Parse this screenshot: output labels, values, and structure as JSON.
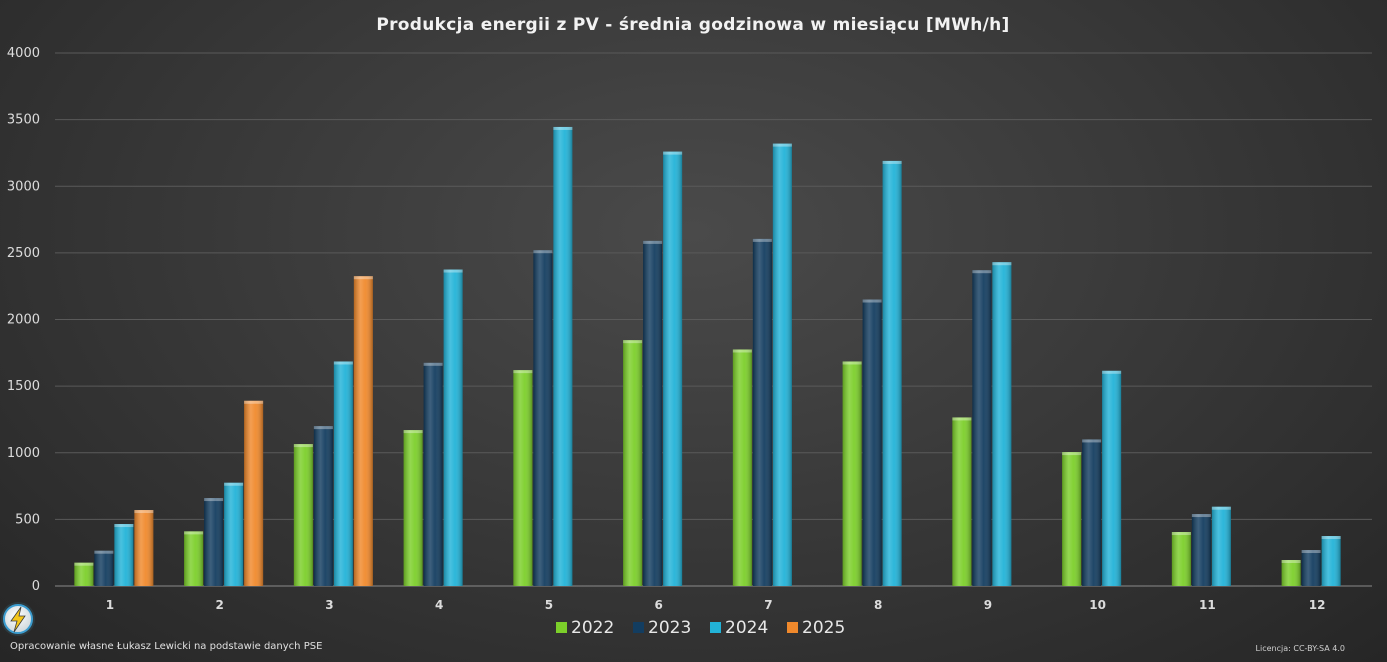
{
  "chart_data": {
    "type": "bar",
    "title": "Produkcja energii z PV - średnia godzinowa w miesiącu [MWh/h]",
    "categories": [
      "1",
      "2",
      "3",
      "4",
      "5",
      "6",
      "7",
      "8",
      "9",
      "10",
      "11",
      "12"
    ],
    "series": [
      {
        "name": "2022",
        "color": "#7ccf2a",
        "values": [
          175,
          410,
          1065,
          1170,
          1620,
          1845,
          1775,
          1685,
          1265,
          1005,
          405,
          195
        ]
      },
      {
        "name": "2023",
        "color": "#133d60",
        "values": [
          265,
          660,
          1200,
          1675,
          2520,
          2590,
          2605,
          2150,
          2370,
          1100,
          540,
          270
        ]
      },
      {
        "name": "2024",
        "color": "#22b3d8",
        "values": [
          465,
          775,
          1685,
          2375,
          3445,
          3260,
          3320,
          3190,
          2430,
          1615,
          595,
          375
        ]
      },
      {
        "name": "2025",
        "color": "#f0892c",
        "values": [
          570,
          1390,
          2325,
          null,
          null,
          null,
          null,
          null,
          null,
          null,
          null,
          null
        ]
      }
    ],
    "ylim": [
      0,
      4000
    ],
    "yticks": [
      "0",
      "500",
      "1000",
      "1500",
      "2000",
      "2500",
      "3000",
      "3500",
      "4000"
    ],
    "xlabel": "",
    "ylabel": "",
    "grid": true,
    "legend_position": "bottom-center"
  },
  "footer": {
    "source": "Opracowanie własne Łukasz Lewicki na podstawie danych PSE",
    "license": "Licencja: CC-BY-SA 4.0"
  },
  "logo": {
    "icon": "lightning-logo-icon"
  }
}
